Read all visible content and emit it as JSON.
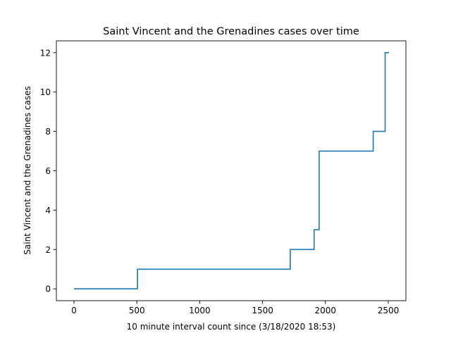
{
  "chart_data": {
    "type": "line",
    "drawstyle": "steps-post",
    "title": "Saint Vincent and the Grenadines cases over time",
    "xlabel": "10 minute interval count since (3/18/2020 18:53)",
    "ylabel": "Saint Vincent and the Grenadines cases",
    "xlim": [
      -140,
      2640
    ],
    "ylim": [
      -0.6,
      12.6
    ],
    "xticks": [
      0,
      500,
      1000,
      1500,
      2000,
      2500
    ],
    "yticks": [
      0,
      2,
      4,
      6,
      8,
      10,
      12
    ],
    "grid": false,
    "color": "#1f77b4",
    "series": [
      {
        "x": [
          0,
          505,
          1720,
          1910,
          1950,
          2380,
          2475,
          2505
        ],
        "y": [
          0,
          1,
          2,
          3,
          7,
          8,
          12,
          12
        ]
      }
    ]
  }
}
